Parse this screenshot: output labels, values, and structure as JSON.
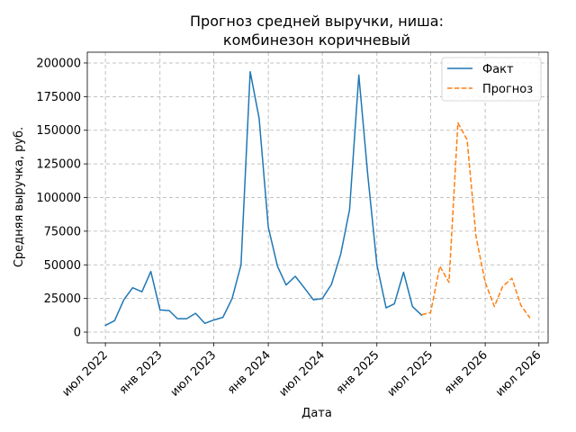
{
  "chart_data": {
    "type": "line",
    "title_line1": "Прогноз средней выручки, ниша:",
    "title_line2": "комбинезон коричневый",
    "xlabel": "Дата",
    "ylabel": "Средняя выручка, руб.",
    "ylim": [
      -8000,
      208000
    ],
    "xlim": [
      "2022-05-01",
      "2026-08-01"
    ],
    "grid": true,
    "legend_position": "top-right",
    "yticks": [
      0,
      25000,
      50000,
      75000,
      100000,
      125000,
      150000,
      175000,
      200000
    ],
    "ytick_labels": [
      "0",
      "25000",
      "50000",
      "75000",
      "100000",
      "125000",
      "150000",
      "175000",
      "200000"
    ],
    "xticks": [
      {
        "date": "2022-07-01",
        "label": "июл 2022"
      },
      {
        "date": "2023-01-01",
        "label": "янв 2023"
      },
      {
        "date": "2023-07-01",
        "label": "июл 2023"
      },
      {
        "date": "2024-01-01",
        "label": "янв 2024"
      },
      {
        "date": "2024-07-01",
        "label": "июл 2024"
      },
      {
        "date": "2025-01-01",
        "label": "янв 2025"
      },
      {
        "date": "2025-07-01",
        "label": "июл 2025"
      },
      {
        "date": "2026-01-01",
        "label": "янв 2026"
      },
      {
        "date": "2026-07-01",
        "label": "июл 2026"
      }
    ],
    "series": [
      {
        "name": "Факт",
        "color": "#1f77b4",
        "style": "solid",
        "points": [
          {
            "x": "2022-07-01",
            "y": 5000
          },
          {
            "x": "2022-08-01",
            "y": 8500
          },
          {
            "x": "2022-09-01",
            "y": 24000
          },
          {
            "x": "2022-10-01",
            "y": 33000
          },
          {
            "x": "2022-11-01",
            "y": 30000
          },
          {
            "x": "2022-12-01",
            "y": 45000
          },
          {
            "x": "2023-01-01",
            "y": 16500
          },
          {
            "x": "2023-02-01",
            "y": 16000
          },
          {
            "x": "2023-03-01",
            "y": 10000
          },
          {
            "x": "2023-04-01",
            "y": 10000
          },
          {
            "x": "2023-05-01",
            "y": 14000
          },
          {
            "x": "2023-06-01",
            "y": 6500
          },
          {
            "x": "2023-07-01",
            "y": 9000
          },
          {
            "x": "2023-08-01",
            "y": 11000
          },
          {
            "x": "2023-09-01",
            "y": 25000
          },
          {
            "x": "2023-10-01",
            "y": 50000
          },
          {
            "x": "2023-11-01",
            "y": 193500
          },
          {
            "x": "2023-12-01",
            "y": 159000
          },
          {
            "x": "2024-01-01",
            "y": 78000
          },
          {
            "x": "2024-02-01",
            "y": 49000
          },
          {
            "x": "2024-03-01",
            "y": 35000
          },
          {
            "x": "2024-04-01",
            "y": 41500
          },
          {
            "x": "2024-05-01",
            "y": 33000
          },
          {
            "x": "2024-06-01",
            "y": 24000
          },
          {
            "x": "2024-07-01",
            "y": 25000
          },
          {
            "x": "2024-08-01",
            "y": 35500
          },
          {
            "x": "2024-09-01",
            "y": 58000
          },
          {
            "x": "2024-10-01",
            "y": 91000
          },
          {
            "x": "2024-11-01",
            "y": 191000
          },
          {
            "x": "2024-12-01",
            "y": 117000
          },
          {
            "x": "2025-01-01",
            "y": 50000
          },
          {
            "x": "2025-02-01",
            "y": 18000
          },
          {
            "x": "2025-03-01",
            "y": 21000
          },
          {
            "x": "2025-04-01",
            "y": 44500
          },
          {
            "x": "2025-05-01",
            "y": 19000
          },
          {
            "x": "2025-06-01",
            "y": 12500
          }
        ]
      },
      {
        "name": "Прогноз",
        "color": "#ff7f0e",
        "style": "dashed",
        "points": [
          {
            "x": "2025-06-01",
            "y": 13000
          },
          {
            "x": "2025-07-01",
            "y": 14500
          },
          {
            "x": "2025-08-01",
            "y": 49000
          },
          {
            "x": "2025-09-01",
            "y": 37000
          },
          {
            "x": "2025-10-01",
            "y": 155500
          },
          {
            "x": "2025-11-01",
            "y": 143000
          },
          {
            "x": "2025-12-01",
            "y": 71000
          },
          {
            "x": "2026-01-01",
            "y": 37000
          },
          {
            "x": "2026-02-01",
            "y": 19000
          },
          {
            "x": "2026-03-01",
            "y": 34000
          },
          {
            "x": "2026-04-01",
            "y": 40000
          },
          {
            "x": "2026-05-01",
            "y": 20000
          },
          {
            "x": "2026-06-01",
            "y": 10500
          }
        ]
      }
    ]
  }
}
